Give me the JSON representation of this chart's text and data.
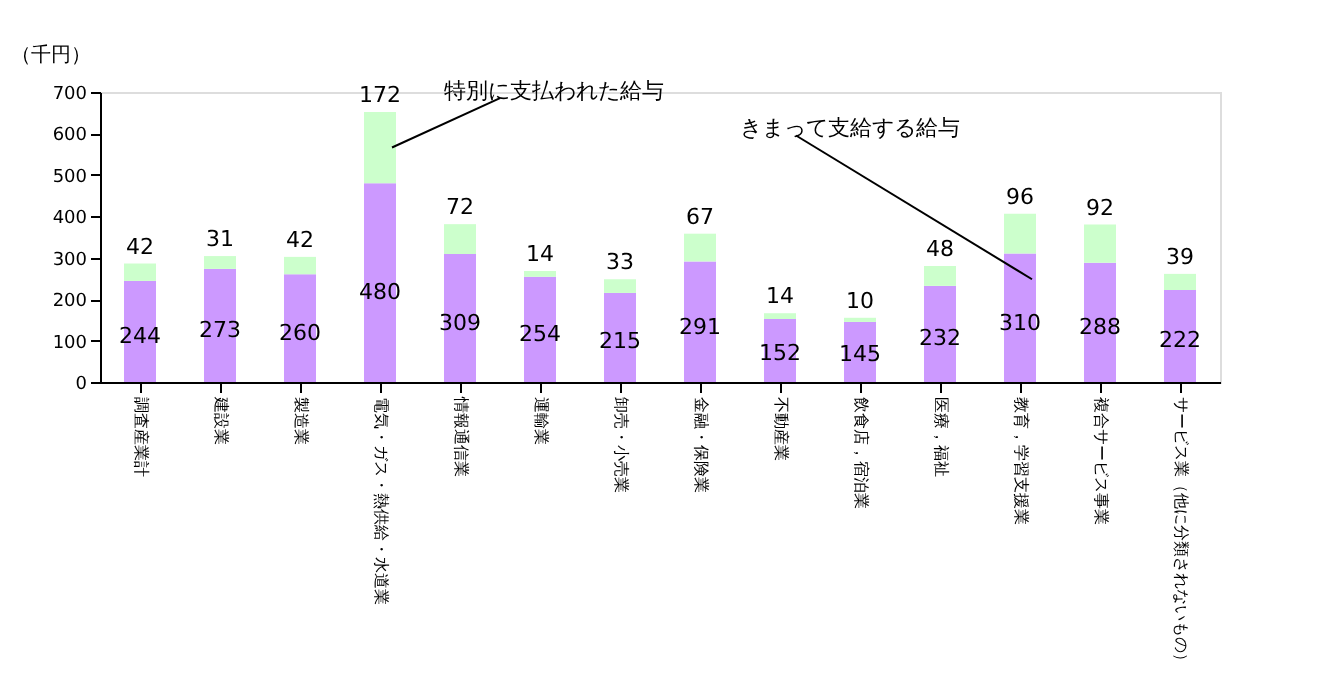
{
  "chart_data": {
    "type": "bar",
    "stacked": true,
    "ylabel": "（千円）",
    "categories": [
      "調査産業計",
      "建設業",
      "製造業",
      "電気・ガス・熱供給・水道業",
      "情報通信業",
      "運輸業",
      "卸売・小売業",
      "金融・保険業",
      "不動産業",
      "飲食店，宿泊業",
      "医療，福祉",
      "教育，学習支援業",
      "複合サービス事業",
      "サービス業（他に分類されないもの）"
    ],
    "series": [
      {
        "name": "きまって支給する給与",
        "color": "#cc99ff",
        "values": [
          244,
          273,
          260,
          480,
          309,
          254,
          215,
          291,
          152,
          145,
          232,
          310,
          288,
          222
        ]
      },
      {
        "name": "特別に支払われた給与",
        "color": "#ccffcc",
        "values": [
          42,
          31,
          42,
          172,
          72,
          14,
          33,
          67,
          14,
          10,
          48,
          96,
          92,
          39
        ]
      }
    ],
    "ylim": [
      0,
      700
    ],
    "yticks": [
      0,
      100,
      200,
      300,
      400,
      500,
      600,
      700
    ],
    "grid": false,
    "legend": false,
    "data_labels": true
  }
}
